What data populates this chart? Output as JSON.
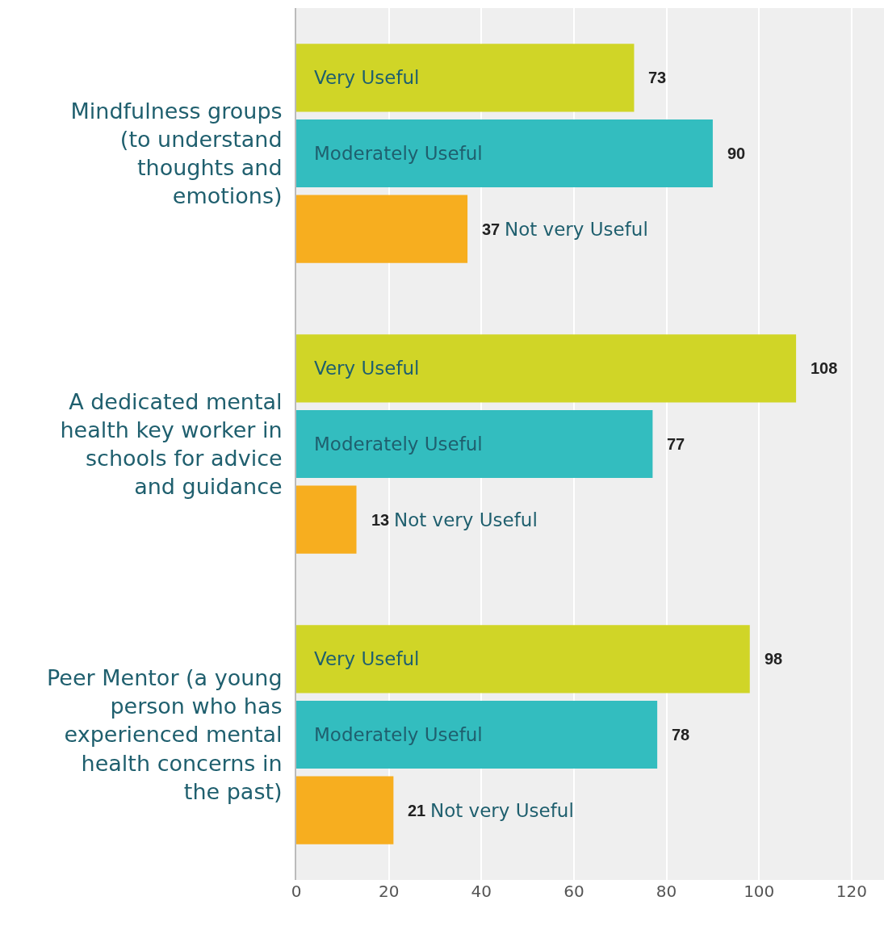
{
  "chart_data": {
    "type": "bar",
    "orientation": "horizontal",
    "categories": [
      "Mindfulness groups (to understand thoughts and emotions)",
      "A dedicated mental health key worker in schools for advice and guidance",
      "Peer Mentor (a young person who has experienced mental health concerns in the past)"
    ],
    "series": [
      {
        "name": "Very Useful",
        "color": "#d0d527",
        "values": [
          73,
          108,
          98
        ]
      },
      {
        "name": "Moderately Useful",
        "color": "#33bdbf",
        "values": [
          90,
          77,
          78
        ]
      },
      {
        "name": "Not very Useful",
        "color": "#f7ae1f",
        "values": [
          37,
          13,
          21
        ]
      }
    ],
    "xlim": [
      0,
      127
    ],
    "xticks": [
      0,
      20,
      40,
      60,
      80,
      100,
      120
    ],
    "grid": "x",
    "legend": false,
    "data_labels": true
  }
}
